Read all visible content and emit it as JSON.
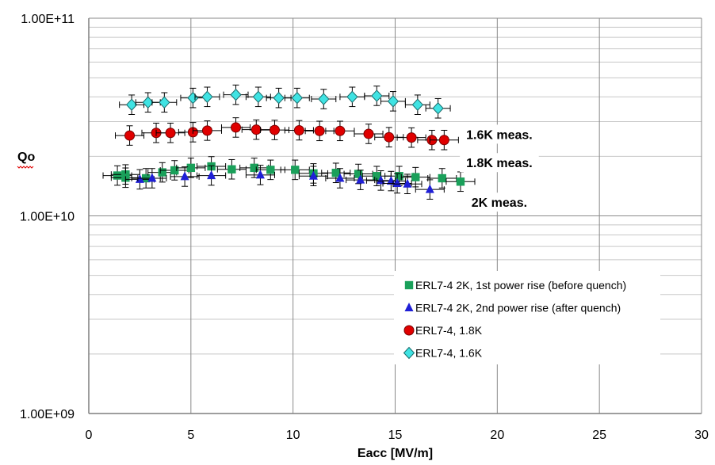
{
  "chart_data": {
    "type": "scatter",
    "title": "",
    "xlabel": "Eacc [MV/m]",
    "ylabel": "Qo",
    "xlim": [
      0,
      30
    ],
    "ylim": [
      1000000000,
      100000000000
    ],
    "yscale": "log",
    "x_ticks": [
      0,
      5,
      10,
      15,
      20,
      25,
      30
    ],
    "x_tick_labels": [
      "0",
      "5",
      "10",
      "15",
      "20",
      "25",
      "30"
    ],
    "y_ticks": [
      1000000000,
      10000000000,
      100000000000
    ],
    "y_tick_labels": [
      "1.00E+09",
      "1.00E+10",
      "1.00E+11"
    ],
    "grid": true,
    "legend_position": "bottom-right",
    "annotations": [
      {
        "text": "1.6K meas.",
        "x": 20.1,
        "y": 24500000000
      },
      {
        "text": "1.8K meas.",
        "x": 20.1,
        "y": 17600000000
      },
      {
        "text": "2K meas.",
        "x": 20.1,
        "y": 11100000000
      }
    ],
    "series": [
      {
        "name": "ERL7-4 2K, 1st power rise (before quench)",
        "marker": "square",
        "color": "#1aa05a",
        "x_error": 0.7,
        "y_error_frac": 0.12,
        "points": [
          [
            1.4,
            16000000000
          ],
          [
            1.8,
            16200000000
          ],
          [
            1.8,
            15600000000
          ],
          [
            2.8,
            15500000000
          ],
          [
            3.6,
            16600000000
          ],
          [
            4.2,
            17000000000
          ],
          [
            5.0,
            17500000000
          ],
          [
            6.0,
            17800000000
          ],
          [
            7.0,
            17200000000
          ],
          [
            8.1,
            17500000000
          ],
          [
            8.9,
            17100000000
          ],
          [
            10.1,
            17100000000
          ],
          [
            11.0,
            16400000000
          ],
          [
            12.1,
            16500000000
          ],
          [
            13.2,
            16300000000
          ],
          [
            14.1,
            15900000000
          ],
          [
            15.2,
            15900000000
          ],
          [
            16.0,
            15700000000
          ],
          [
            17.3,
            15500000000
          ],
          [
            18.2,
            14900000000
          ]
        ]
      },
      {
        "name": "ERL7-4 2K, 2nd power rise (after quench)",
        "marker": "triangle",
        "color": "#1f1fd6",
        "x_error": 0.7,
        "y_error_frac": 0.12,
        "points": [
          [
            2.5,
            15300000000
          ],
          [
            3.1,
            15500000000
          ],
          [
            4.7,
            15800000000
          ],
          [
            6.0,
            16000000000
          ],
          [
            8.4,
            16100000000
          ],
          [
            11.0,
            15900000000
          ],
          [
            12.3,
            15500000000
          ],
          [
            13.3,
            15200000000
          ],
          [
            14.3,
            15100000000
          ],
          [
            14.8,
            15000000000
          ],
          [
            15.1,
            14600000000
          ],
          [
            15.6,
            14500000000
          ],
          [
            16.7,
            13600000000
          ]
        ]
      },
      {
        "name": "ERL7-4, 1.8K",
        "marker": "circle",
        "color": "#e00000",
        "x_error": 0.7,
        "y_error_frac": 0.12,
        "points": [
          [
            2.0,
            25500000000
          ],
          [
            3.3,
            26300000000
          ],
          [
            4.0,
            26300000000
          ],
          [
            5.1,
            26500000000
          ],
          [
            5.8,
            27000000000
          ],
          [
            7.2,
            28000000000
          ],
          [
            8.2,
            27300000000
          ],
          [
            9.1,
            27200000000
          ],
          [
            10.3,
            27100000000
          ],
          [
            11.3,
            26900000000
          ],
          [
            12.3,
            26900000000
          ],
          [
            13.7,
            26000000000
          ],
          [
            14.7,
            25000000000
          ],
          [
            15.8,
            24900000000
          ],
          [
            16.8,
            24200000000
          ],
          [
            17.4,
            24200000000
          ]
        ]
      },
      {
        "name": "ERL7-4, 1.6K",
        "marker": "diamond",
        "color": "#3fe3e3",
        "x_error": 0.6,
        "y_error_frac": 0.12,
        "points": [
          [
            2.1,
            36500000000
          ],
          [
            2.9,
            37500000000
          ],
          [
            3.7,
            37500000000
          ],
          [
            5.1,
            39500000000
          ],
          [
            5.8,
            40000000000
          ],
          [
            7.2,
            41000000000
          ],
          [
            8.3,
            40000000000
          ],
          [
            9.3,
            39500000000
          ],
          [
            10.2,
            39500000000
          ],
          [
            11.5,
            39000000000
          ],
          [
            12.9,
            40000000000
          ],
          [
            14.1,
            40500000000
          ],
          [
            14.9,
            38000000000
          ],
          [
            16.1,
            36500000000
          ],
          [
            17.1,
            35000000000
          ]
        ]
      }
    ]
  }
}
